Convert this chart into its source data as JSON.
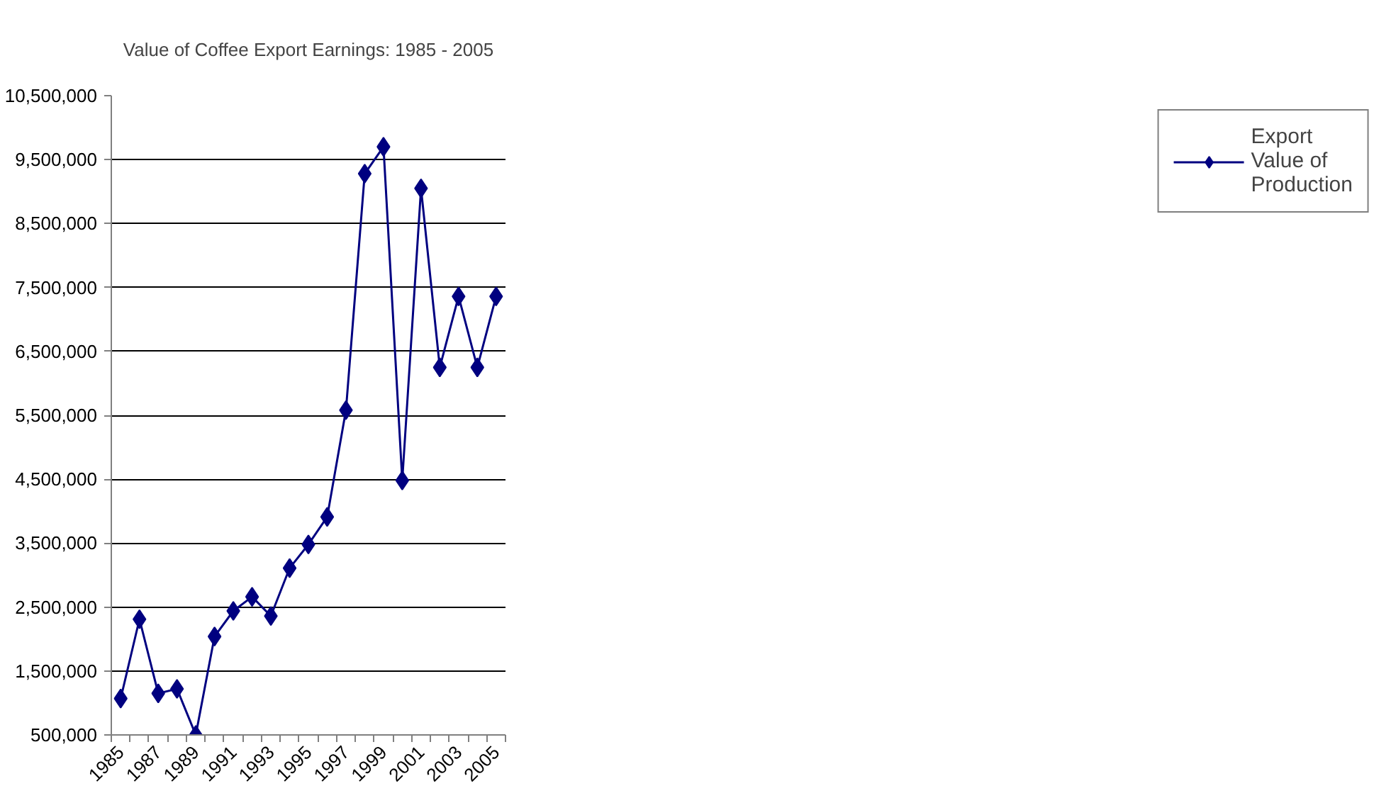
{
  "chart_data": {
    "type": "line",
    "title": "Value of Coffee Export Earnings: 1985 - 2005",
    "categories": [
      "1985",
      null,
      "1987",
      null,
      "1989",
      null,
      "1991",
      null,
      "1993",
      null,
      "1995",
      null,
      "1997",
      null,
      "1999",
      null,
      "2001",
      null,
      "2003",
      null,
      "2005"
    ],
    "series": [
      {
        "name": "Export Value of Production",
        "color": "#000080",
        "values": [
          1070000,
          2310000,
          1150000,
          1220000,
          500000,
          2040000,
          2440000,
          2660000,
          2360000,
          3110000,
          3480000,
          3910000,
          5580000,
          9280000,
          9700000,
          4480000,
          9050000,
          6250000,
          7360000,
          6250000,
          7360000
        ]
      }
    ],
    "ylim": [
      500000,
      10500000
    ],
    "yticks": [
      {
        "value": 500000,
        "label": "500,000"
      },
      {
        "value": 1500000,
        "label": "1,500,000"
      },
      {
        "value": 2500000,
        "label": "2,500,000"
      },
      {
        "value": 3500000,
        "label": "3,500,000"
      },
      {
        "value": 4500000,
        "label": "4,500,000"
      },
      {
        "value": 5500000,
        "label": "5,500,000"
      },
      {
        "value": 6500000,
        "label": "6,500,000"
      },
      {
        "value": 7500000,
        "label": "7,500,000"
      },
      {
        "value": 8500000,
        "label": "8,500,000"
      },
      {
        "value": 9500000,
        "label": "9,500,000"
      },
      {
        "value": 10500000,
        "label": "10,500,000"
      }
    ],
    "grid": "y",
    "legend": "right",
    "marker": "diamond",
    "line_style": "solid"
  }
}
